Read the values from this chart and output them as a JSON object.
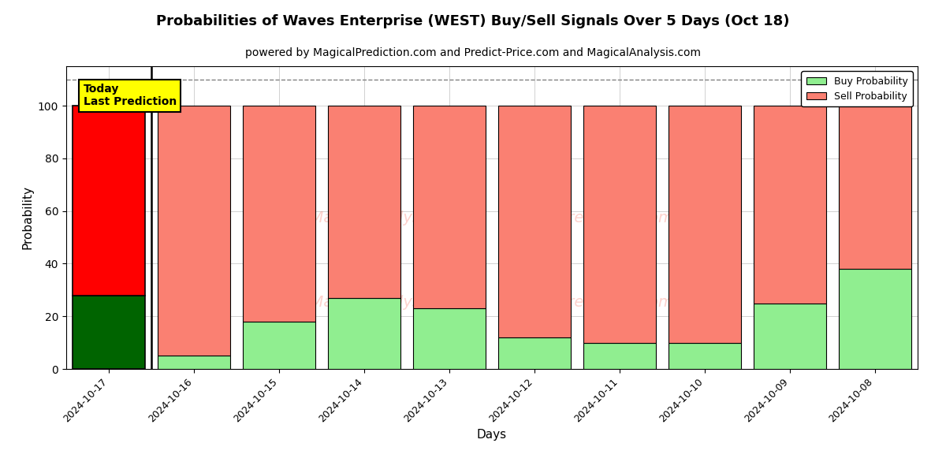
{
  "title": "Probabilities of Waves Enterprise (WEST) Buy/Sell Signals Over 5 Days (Oct 18)",
  "subtitle": "powered by MagicalPrediction.com and Predict-Price.com and MagicalAnalysis.com",
  "xlabel": "Days",
  "ylabel": "Probability",
  "dates": [
    "2024-10-17",
    "2024-10-16",
    "2024-10-15",
    "2024-10-14",
    "2024-10-13",
    "2024-10-12",
    "2024-10-11",
    "2024-10-10",
    "2024-10-09",
    "2024-10-08"
  ],
  "buy_probs": [
    28,
    5,
    18,
    27,
    23,
    12,
    10,
    10,
    25,
    38
  ],
  "sell_probs": [
    72,
    95,
    82,
    73,
    77,
    88,
    90,
    90,
    75,
    62
  ],
  "today_buy_color": "#006400",
  "today_sell_color": "#FF0000",
  "other_buy_color": "#90EE90",
  "other_sell_color": "#FA8072",
  "today_label": "Today\nLast Prediction",
  "today_label_bg": "#FFFF00",
  "legend_buy_color": "#90EE90",
  "legend_sell_color": "#FA8072",
  "dashed_line_y": 110,
  "ylim": [
    0,
    115
  ],
  "bar_edge_color": "black",
  "bar_linewidth": 0.8,
  "watermark_color": "#FA8072",
  "watermark_alpha": 0.35,
  "grid_color": "gray",
  "grid_alpha": 0.5,
  "background_color": "white"
}
